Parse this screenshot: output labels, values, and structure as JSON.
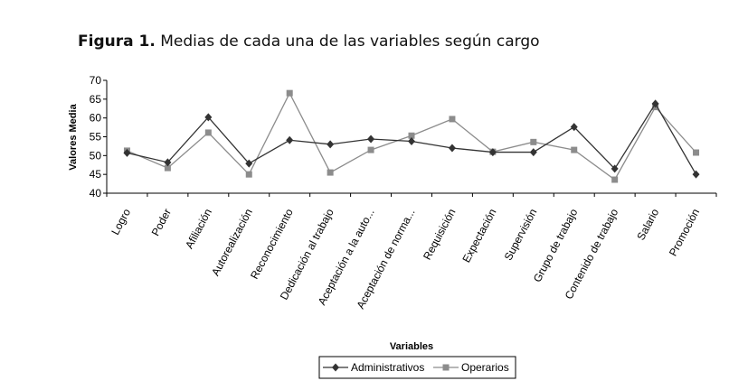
{
  "figure": {
    "label": "Figura 1.",
    "caption": "Medias de cada una de las variables según cargo"
  },
  "chart_data": {
    "type": "line",
    "title": "Medias de cada una de las variables según cargo",
    "xlabel": "Variables",
    "ylabel": "Valores Media",
    "ylim": [
      40,
      70
    ],
    "yticks": [
      40,
      45,
      50,
      55,
      60,
      65,
      70
    ],
    "categories": [
      "Logro",
      "Poder",
      "Afiliación",
      "Autorealización",
      "Reconocimiento",
      "Dedicación al trabajo",
      "Aceptación a la auto...",
      "Aceptación de norma...",
      "Requisición",
      "Expectación",
      "Supervisión",
      "Grupo de trabajo",
      "Contenido de trabajo",
      "Salario",
      "Promoción"
    ],
    "series": [
      {
        "name": "Administrativos",
        "color": "#333333",
        "marker": "diamond",
        "values": [
          50.7,
          48.2,
          60.2,
          47.9,
          54.1,
          53.0,
          54.4,
          53.8,
          52.0,
          50.9,
          50.9,
          57.6,
          46.5,
          63.8,
          45.0
        ]
      },
      {
        "name": "Operarios",
        "color": "#8c8c8c",
        "marker": "square",
        "values": [
          51.3,
          46.7,
          56.1,
          45.0,
          66.6,
          45.5,
          51.5,
          55.3,
          59.7,
          51.0,
          53.6,
          51.5,
          43.6,
          62.9,
          50.8
        ]
      }
    ],
    "legend": "bottom",
    "grid": false
  }
}
